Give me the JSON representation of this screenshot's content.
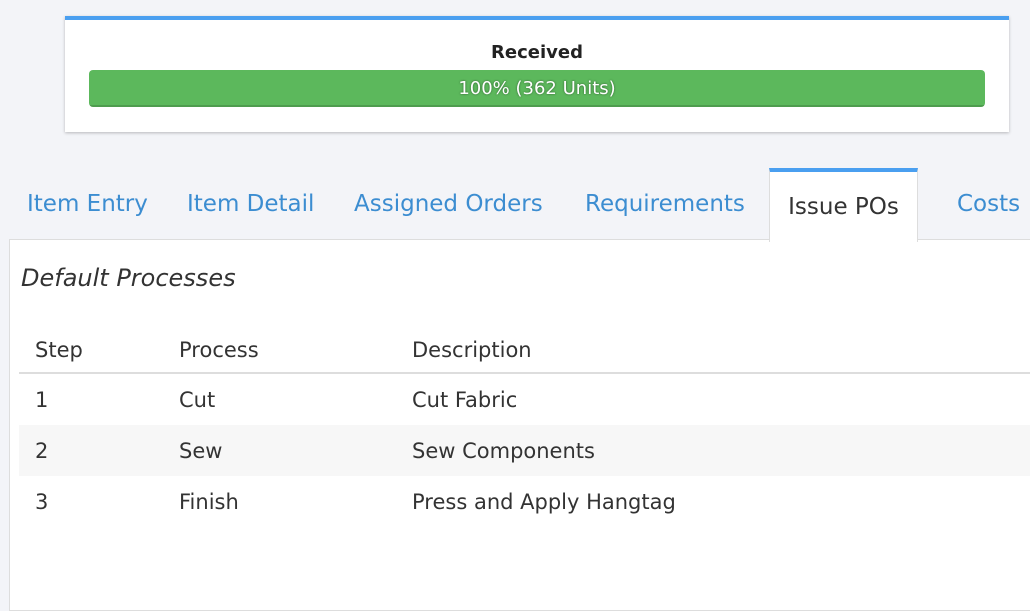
{
  "received": {
    "title": "Received",
    "percent": 100,
    "label": "100% (362 Units)",
    "bar_color": "#5cb85c"
  },
  "tabs": [
    {
      "label": "Item Entry"
    },
    {
      "label": "Item Detail"
    },
    {
      "label": "Assigned Orders"
    },
    {
      "label": "Requirements"
    },
    {
      "label": "Issue POs",
      "active": true
    },
    {
      "label": "Costs"
    }
  ],
  "panel": {
    "title": "Default Processes",
    "columns": [
      "Step",
      "Process",
      "Description"
    ],
    "rows": [
      [
        "1",
        "Cut",
        "Cut Fabric"
      ],
      [
        "2",
        "Sew",
        "Sew Components"
      ],
      [
        "3",
        "Finish",
        "Press and Apply Hangtag"
      ]
    ]
  }
}
